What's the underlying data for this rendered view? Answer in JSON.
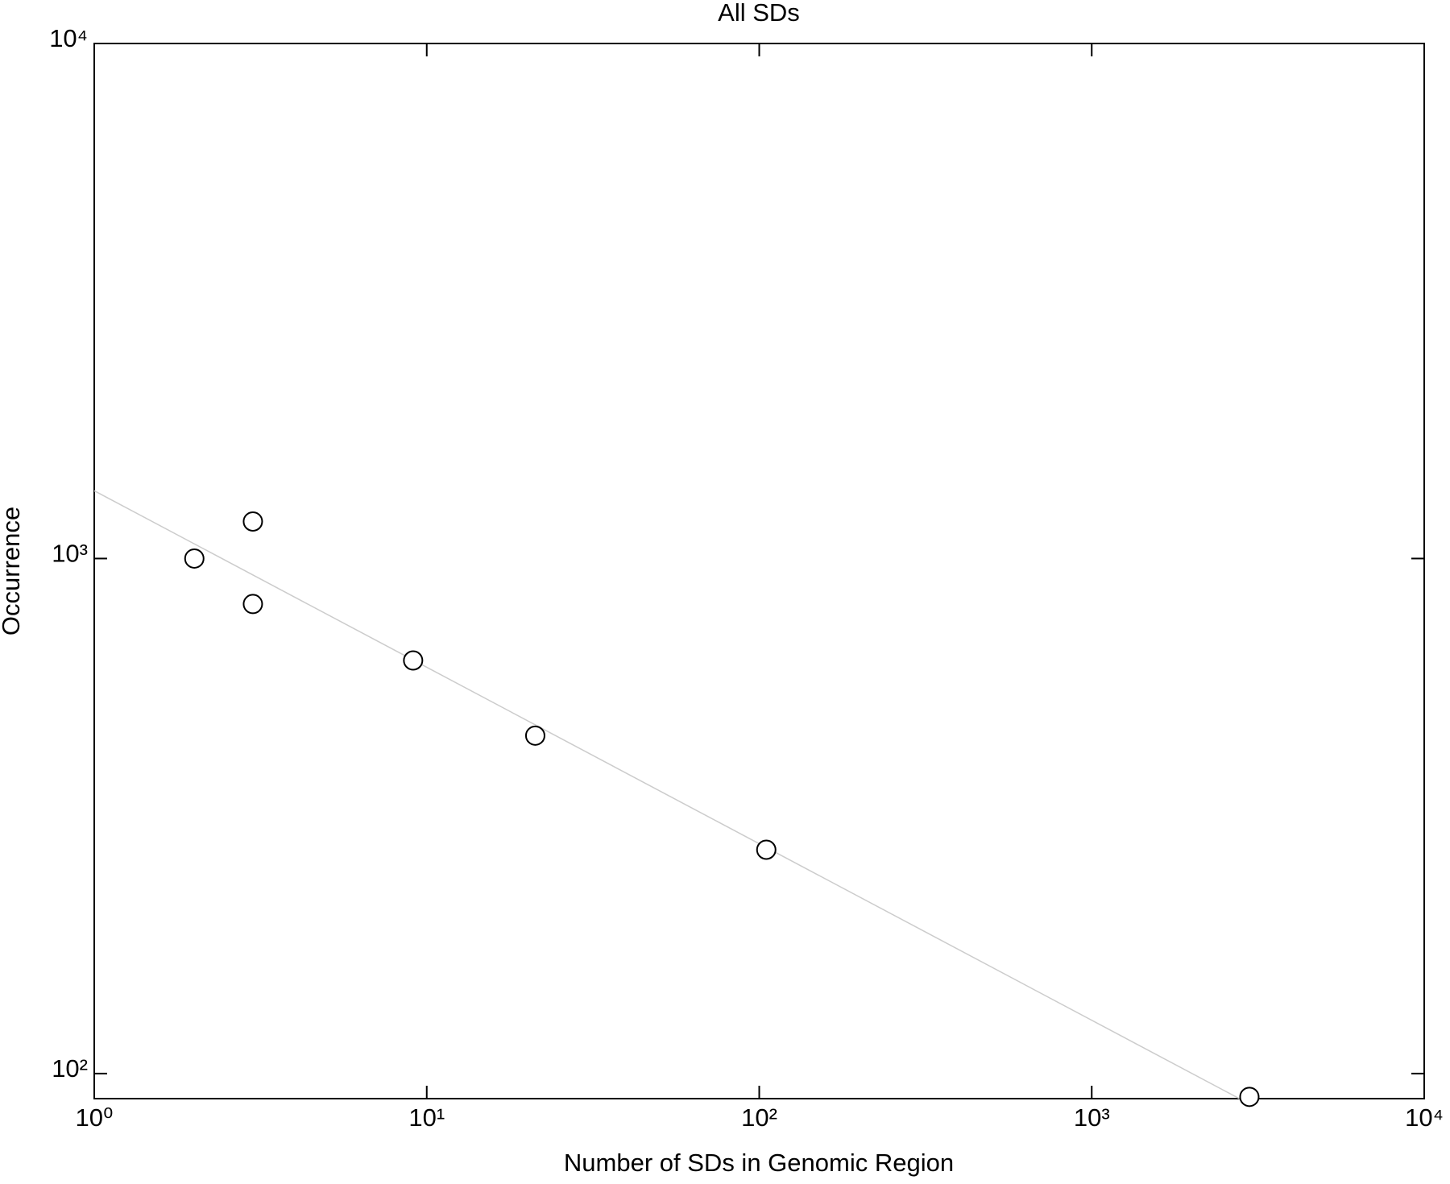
{
  "chart_data": {
    "type": "scatter",
    "title": "All SDs",
    "x_label": "Number of SDs in Genomic Region",
    "y_label": "Occurrence",
    "log_x": true,
    "log_y": true,
    "xlim": [
      1,
      10000
    ],
    "ylim": [
      89.4,
      10000
    ],
    "xticks": [
      {
        "value": 1,
        "label": "10⁰"
      },
      {
        "value": 10,
        "label": "10¹"
      },
      {
        "value": 100,
        "label": "10²"
      },
      {
        "value": 1000,
        "label": "10³"
      },
      {
        "value": 10000,
        "label": "10⁴"
      }
    ],
    "yticks": [
      {
        "value": 100,
        "label": "10²"
      },
      {
        "value": 1000,
        "label": "10³"
      },
      {
        "value": 10000,
        "label": "10⁴"
      }
    ],
    "series": [
      {
        "color": "#000000",
        "x": [
          2,
          3,
          3,
          9.1,
          21.2,
          105,
          2980
        ],
        "values": [
          1000,
          1180,
          816,
          634,
          453,
          272,
          90.1
        ]
      },
      {
        "color": "#cccccc",
        "line": true,
        "x": [
          1,
          2780
        ],
        "values": [
          1354,
          89.4
        ]
      }
    ]
  }
}
